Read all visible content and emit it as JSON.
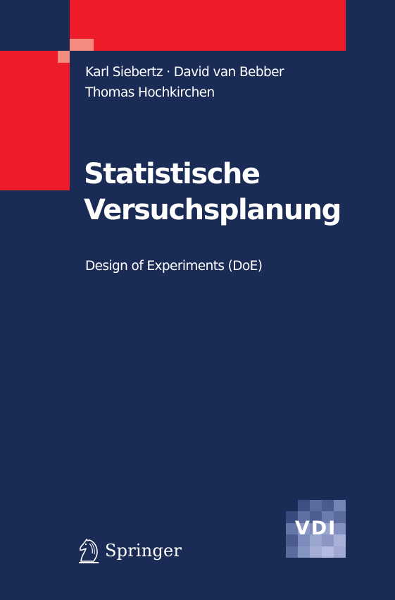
{
  "authors": [
    "Karl Siebertz · David van Bebber",
    "Thomas Hochkirchen"
  ],
  "title_lines": [
    "Statistische",
    "Versuchsplanung"
  ],
  "subtitle": "Design of Experiments (DoE)",
  "publisher": {
    "name": "Springer",
    "logo_icon": "springer-knight-icon"
  },
  "series_logo": {
    "text": "VDI",
    "tile_colors": [
      "#1a2b56",
      "#3f4f83",
      "#5a6b9c",
      "#4a5a8d",
      "#7484b5",
      "#3a4a7e",
      "#5e6fa1",
      "#4d5d90",
      "#6a7bad",
      "#5a6b9c",
      "#6676a8",
      "#8b96c4",
      "#7a89b8",
      "#9aa5cf",
      "#8390bf",
      "#4c5c8f",
      "#7d8cbb",
      "#9ba6cf",
      "#8a97c3",
      "#a8b2d8",
      "#5b6c9f",
      "#8795c2",
      "#a3add6",
      "#b3bce0",
      "#9fa9d2"
    ]
  },
  "colors": {
    "background": "#1a2b56",
    "accent_red": "#ee1c2b",
    "accent_salmon": "#f58a7e",
    "text": "#ffffff"
  }
}
